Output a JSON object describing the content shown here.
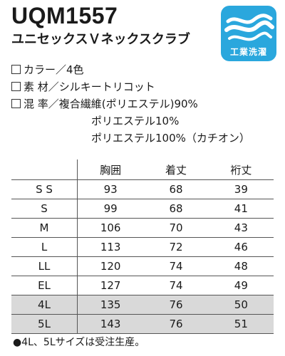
{
  "header": {
    "model_code": "UQM1557",
    "product_name": "ユニセックスＶネックスクラブ",
    "badge": {
      "label": "工業洗濯",
      "icon": "wave-icon",
      "color": "#2aa7dd"
    }
  },
  "specs": [
    {
      "text": "カラー／4色"
    },
    {
      "text": "素 材／シルキートリコット"
    },
    {
      "text": "混 率／複合繊維(ポリエステル)90%"
    },
    {
      "text": "ポリエステル10%"
    },
    {
      "text": "ポリエステル100%（カチオン）"
    }
  ],
  "size_table": {
    "headers": [
      "",
      "胸囲",
      "着丈",
      "裄丈"
    ],
    "rows": [
      {
        "size": "S S",
        "chest": "93",
        "length": "68",
        "sleeve": "39"
      },
      {
        "size": "S",
        "chest": "99",
        "length": "68",
        "sleeve": "41"
      },
      {
        "size": "M",
        "chest": "106",
        "length": "70",
        "sleeve": "43"
      },
      {
        "size": "L",
        "chest": "113",
        "length": "72",
        "sleeve": "46"
      },
      {
        "size": "LL",
        "chest": "120",
        "length": "74",
        "sleeve": "48"
      },
      {
        "size": "EL",
        "chest": "127",
        "length": "74",
        "sleeve": "49"
      },
      {
        "size": "4L",
        "chest": "135",
        "length": "76",
        "sleeve": "50"
      },
      {
        "size": "5L",
        "chest": "143",
        "length": "76",
        "sleeve": "51"
      }
    ]
  },
  "note": "●4L、5Lサイズは受注生産。"
}
